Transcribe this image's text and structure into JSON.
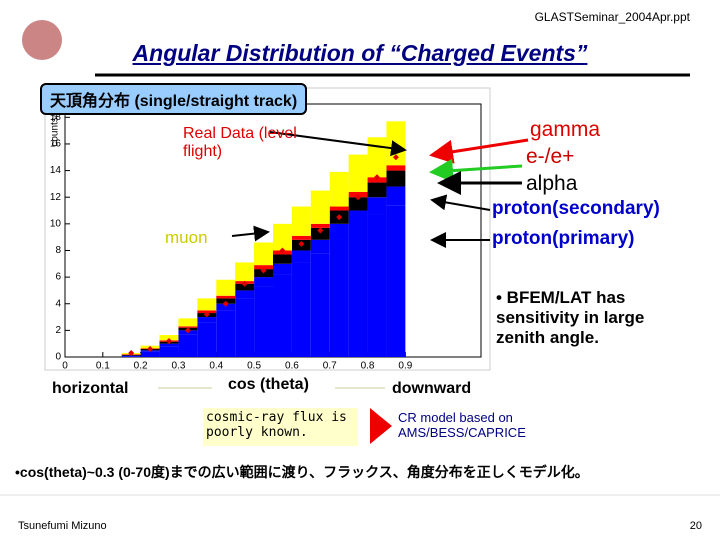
{
  "slide": {
    "header": "GLASTSeminar_2004Apr.ppt",
    "title": "Angular Distribution of “Charged Events”",
    "box_label": "天頂角分布 (single/straight track)",
    "left_label": "horizontal",
    "center_label": "cos (theta)",
    "right_label": "downward",
    "note_left": "cosmic-ray flux is poorly known.",
    "note_right": "CR model based on AMS/BESS/CAPRICE",
    "bullet": "• BFEM/LAT has sensitivity in large zenith angle.",
    "summary": "•cos(theta)~0.3 (0-70度)までの広い範囲に渡り、フラックス、角度分布を正しくモデル化。",
    "author": "Tsunefumi Mizuno",
    "page": "20",
    "muon": "muon"
  },
  "chart_data": {
    "type": "histogram",
    "y_label": "counts/s",
    "bins": [
      0.15,
      0.2,
      0.25,
      0.3,
      0.35,
      0.4,
      0.45,
      0.5,
      0.55,
      0.6,
      0.65,
      0.7,
      0.75,
      0.8,
      0.85,
      0.9
    ],
    "series": [
      {
        "name": "proton(primary)",
        "color": "#0000ff",
        "values": [
          0.05,
          0.4,
          0.8,
          1.7,
          2.6,
          3.5,
          4.4,
          5.3,
          6.2,
          7.1,
          7.8,
          8.9,
          9.8,
          10.7,
          11.4
        ]
      },
      {
        "name": "proton(secondary)",
        "color": "#0000ff",
        "values": [
          0.05,
          0.1,
          0.2,
          0.3,
          0.4,
          0.5,
          0.6,
          0.7,
          0.8,
          0.9,
          1.0,
          1.1,
          1.2,
          1.3,
          1.4
        ]
      },
      {
        "name": "alpha",
        "color": "#000000",
        "values": [
          0.05,
          0.1,
          0.15,
          0.2,
          0.3,
          0.4,
          0.5,
          0.6,
          0.7,
          0.8,
          0.9,
          1.0,
          1.0,
          1.1,
          1.2
        ]
      },
      {
        "name": "e-/e+",
        "color": "#ff0000",
        "values": [
          0.05,
          0.05,
          0.1,
          0.1,
          0.2,
          0.2,
          0.2,
          0.3,
          0.3,
          0.3,
          0.3,
          0.3,
          0.4,
          0.4,
          0.4
        ]
      },
      {
        "name": "gamma",
        "color": "#ffff00",
        "values": [
          0.1,
          0.2,
          0.4,
          0.6,
          0.9,
          1.2,
          1.4,
          1.7,
          2.0,
          2.2,
          2.5,
          2.6,
          2.8,
          3.0,
          3.3
        ]
      }
    ],
    "data_points": {
      "name": "Real Data (level flight)",
      "color": "#dd0000",
      "values": [
        0.3,
        0.6,
        1.2,
        2.0,
        3.2,
        4.0,
        5.5,
        6.5,
        8.0,
        8.5,
        9.5,
        10.5,
        12.0,
        13.5,
        15.0
      ]
    },
    "xlim": [
      0,
      1.1
    ],
    "xticks": [
      0,
      0.1,
      0.2,
      0.3,
      0.4,
      0.5,
      0.6,
      0.7,
      0.8,
      0.9
    ],
    "ylim": [
      0,
      19
    ],
    "yticks": [
      0,
      2,
      4,
      6,
      8,
      10,
      12,
      14,
      16,
      18
    ]
  }
}
